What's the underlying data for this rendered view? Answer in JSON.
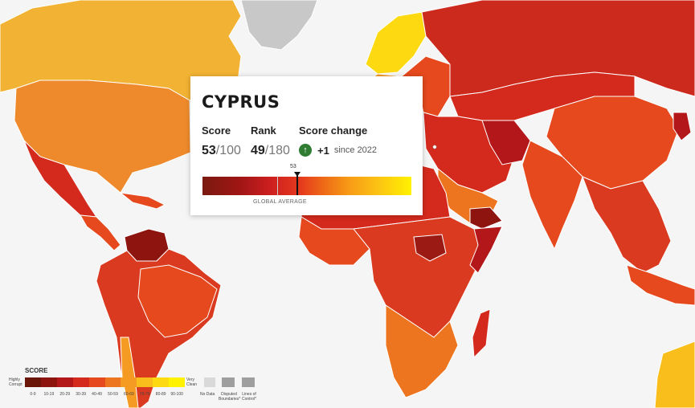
{
  "popup": {
    "country": "CYPRUS",
    "score_label": "Score",
    "score_value": "53",
    "score_max": "/100",
    "rank_label": "Rank",
    "rank_value": "49",
    "rank_max": "/180",
    "change_label": "Score change",
    "change_value": "+1",
    "change_since": "since 2022",
    "marker_value": "53",
    "avg_label": "GLOBAL AVERAGE"
  },
  "legend": {
    "title": "SCORE",
    "left_label_1": "Highly",
    "left_label_2": "Corrupt",
    "right_label_1": "Very",
    "right_label_2": "Clean",
    "ranges": [
      "0-9",
      "10-19",
      "20-29",
      "30-39",
      "40-49",
      "50-59",
      "60-69",
      "70-79",
      "80-89",
      "90-100"
    ],
    "colors": [
      "#6b1508",
      "#8e1410",
      "#b3171a",
      "#d42a1d",
      "#e5491d",
      "#ee7520",
      "#f59a22",
      "#f9be1b",
      "#fcd911",
      "#fff200"
    ],
    "no_data": "No Data",
    "disputed_1": "Disputed",
    "disputed_2": "Boundaries*",
    "lines_1": "Lines of",
    "lines_2": "Control*"
  },
  "map_colors": {
    "ocean": "#f5f5f5",
    "greenland": "#c8c8c8",
    "canada": "#f2b233",
    "usa": "#ee8a2c",
    "russia": "#cc2a1d",
    "nordic": "#fcd911",
    "west_europe": "#f59a22",
    "east_europe": "#e5491d",
    "middle_east": "#d42a1d",
    "saudi": "#ee7520",
    "iran": "#b3171a",
    "china": "#e5491d",
    "india": "#e5491d",
    "africa": "#d42a1d",
    "south_sudan": "#9b1b14",
    "south_america": "#d93a20",
    "venezuela": "#8e1410",
    "mexico": "#d42a1d",
    "mongolia": "#d42a1d",
    "cyprus": "#ffffff"
  }
}
